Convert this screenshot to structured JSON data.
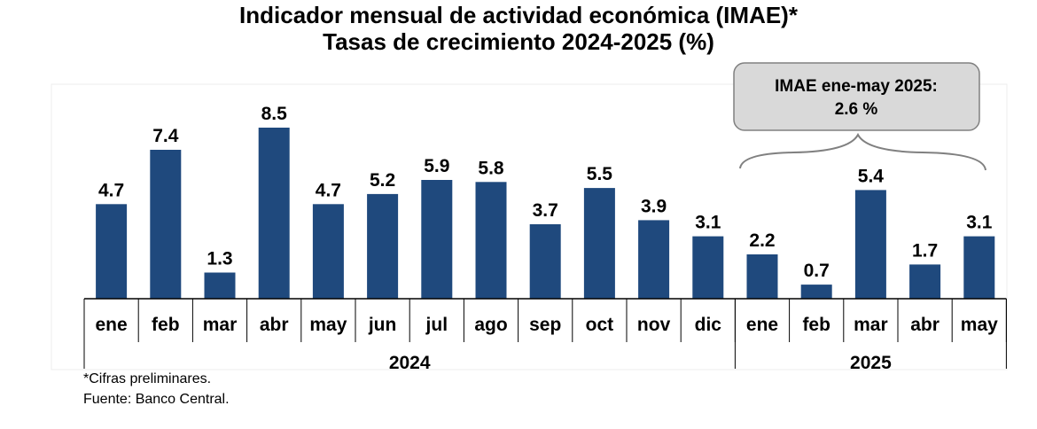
{
  "title": "Indicador mensual de actividad económica (IMAE)*",
  "subtitle": "Tasas de crecimiento 2024-2025 (%)",
  "callout": {
    "line1": "IMAE ene-may 2025:",
    "line2": "2.6 %"
  },
  "footnotes": {
    "note": "*Cifras preliminares.",
    "source": "Fuente: Banco Central."
  },
  "colors": {
    "bar": "#1F497D",
    "callout_fill": "#D9D9D9",
    "callout_border": "#808080",
    "brace": "#808080"
  },
  "chart_data": {
    "type": "bar",
    "title": "Indicador mensual de actividad económica (IMAE)*",
    "subtitle": "Tasas de crecimiento 2024-2025 (%)",
    "categories": [
      "ene",
      "feb",
      "mar",
      "abr",
      "may",
      "jun",
      "jul",
      "ago",
      "sep",
      "oct",
      "nov",
      "dic",
      "ene",
      "feb",
      "mar",
      "abr",
      "may"
    ],
    "values": [
      4.7,
      7.4,
      1.3,
      8.5,
      4.7,
      5.2,
      5.9,
      5.8,
      3.7,
      5.5,
      3.9,
      3.1,
      2.2,
      0.7,
      5.4,
      1.7,
      3.1
    ],
    "data_labels": [
      "4.7",
      "7.4",
      "1.3",
      "8.5",
      "4.7",
      "5.2",
      "5.9",
      "5.8",
      "3.7",
      "5.5",
      "3.9",
      "3.1",
      "2.2",
      "0.7",
      "5.4",
      "1.7",
      "3.1"
    ],
    "groups": [
      {
        "label": "2024",
        "count": 12
      },
      {
        "label": "2025",
        "count": 5
      }
    ],
    "ylim": [
      0,
      8.5
    ],
    "grid": false,
    "legend": "none"
  }
}
